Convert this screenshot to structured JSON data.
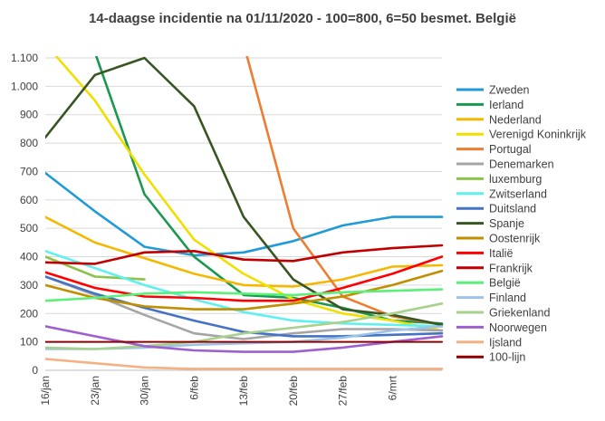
{
  "chart_data": {
    "type": "line",
    "title": "14-daagse incidentie na 01/11/2020 - 100=800, 6=50 besmet. België",
    "ylim": [
      0,
      1100
    ],
    "yticks": [
      0,
      100,
      200,
      300,
      400,
      500,
      600,
      700,
      800,
      900,
      1000,
      1100
    ],
    "ytick_labels": [
      "0",
      "100",
      "200",
      "300",
      "400",
      "500",
      "600",
      "700",
      "800",
      "900",
      "1.000",
      "1.100"
    ],
    "x": [
      0,
      7,
      14,
      21,
      28,
      35,
      42,
      49,
      56
    ],
    "xtick_labels": [
      "16/jan",
      "23/jan",
      "30/jan",
      "6/feb",
      "13/feb",
      "20/feb",
      "27/feb",
      "6/mrt"
    ],
    "xlim": [
      0,
      56
    ],
    "grid": "horizontal",
    "legend_position": "right",
    "series": [
      {
        "name": "Zweden",
        "color": "#1f9bd7",
        "values": [
          695,
          560,
          435,
          405,
          415,
          455,
          510,
          540,
          540
        ]
      },
      {
        "name": "Ierland",
        "color": "#1a9850",
        "values": [
          1150,
          1120,
          620,
          400,
          265,
          255,
          220,
          175,
          165
        ]
      },
      {
        "name": "Nederland",
        "color": "#f5b800",
        "values": [
          540,
          450,
          395,
          340,
          300,
          295,
          320,
          365,
          370
        ]
      },
      {
        "name": "Verenigd Koninkrijk",
        "color": "#f0e000",
        "values": [
          1150,
          950,
          690,
          460,
          340,
          250,
          200,
          175,
          140
        ]
      },
      {
        "name": "Portugal",
        "color": "#ed7d31",
        "values": [
          null,
          null,
          null,
          null,
          1150,
          500,
          260,
          190,
          160
        ]
      },
      {
        "name": "Denemarken",
        "color": "#a5a5a5",
        "values": [
          330,
          265,
          195,
          130,
          110,
          130,
          145,
          145,
          140
        ]
      },
      {
        "name": "luxemburg",
        "color": "#8bc34a",
        "values": [
          400,
          330,
          320,
          null,
          null,
          null,
          null,
          null,
          null
        ]
      },
      {
        "name": "Zwitserland",
        "color": "#5ff0f0",
        "values": [
          420,
          360,
          300,
          250,
          205,
          175,
          165,
          160,
          155
        ]
      },
      {
        "name": "Duitsland",
        "color": "#4472c4",
        "values": [
          330,
          270,
          220,
          175,
          135,
          120,
          120,
          125,
          130
        ]
      },
      {
        "name": "Spanje",
        "color": "#375623",
        "values": [
          820,
          1040,
          1100,
          930,
          540,
          320,
          215,
          195,
          160
        ]
      },
      {
        "name": "Oostenrijk",
        "color": "#bf8f00",
        "values": [
          300,
          255,
          225,
          215,
          215,
          235,
          260,
          300,
          350
        ]
      },
      {
        "name": "Italië",
        "color": "#ff0000",
        "values": [
          345,
          290,
          260,
          255,
          245,
          245,
          290,
          340,
          400
        ]
      },
      {
        "name": "Frankrijk",
        "color": "#c00000",
        "values": [
          380,
          375,
          415,
          420,
          390,
          385,
          415,
          430,
          440
        ]
      },
      {
        "name": "België",
        "color": "#5af07a",
        "values": [
          245,
          255,
          270,
          275,
          270,
          265,
          275,
          280,
          285
        ]
      },
      {
        "name": "Finland",
        "color": "#9dc3e6",
        "values": [
          75,
          75,
          80,
          90,
          95,
          100,
          115,
          140,
          155
        ]
      },
      {
        "name": "Griekenland",
        "color": "#a9d18e",
        "values": [
          80,
          75,
          85,
          100,
          130,
          150,
          170,
          200,
          235
        ]
      },
      {
        "name": "Noorwegen",
        "color": "#9e5fcf",
        "values": [
          155,
          120,
          85,
          70,
          65,
          65,
          80,
          100,
          120
        ]
      },
      {
        "name": "Ijsland",
        "color": "#f4b183",
        "values": [
          40,
          25,
          10,
          5,
          5,
          5,
          5,
          5,
          5
        ]
      },
      {
        "name": "100-lijn",
        "color": "#8b0000",
        "values": [
          100,
          100,
          100,
          100,
          100,
          100,
          100,
          100,
          100
        ]
      }
    ]
  }
}
